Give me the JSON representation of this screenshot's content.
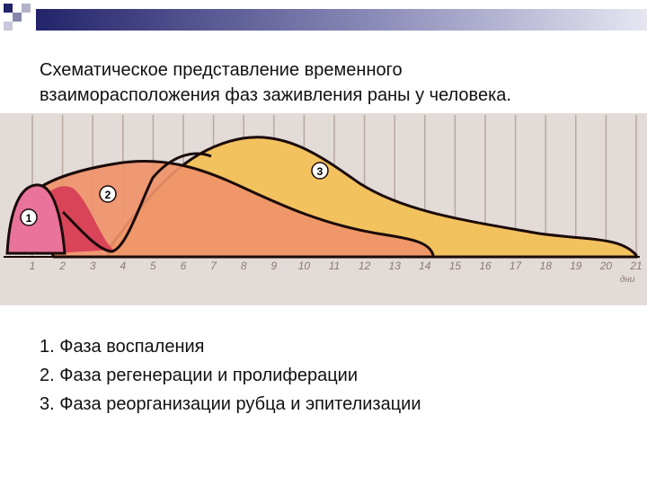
{
  "title_lines": [
    "Схематическое представление временного",
    "взаиморасположения фаз заживления раны у человека."
  ],
  "legend": [
    "1. Фаза воспаления",
    "2. Фаза регенерации и пролиферации",
    "3. Фаза реорганизации рубца и эпителизации"
  ],
  "diagram": {
    "days": [
      1,
      2,
      3,
      4,
      5,
      6,
      7,
      8,
      9,
      10,
      11,
      12,
      13,
      14,
      15,
      16,
      17,
      18,
      19,
      20,
      21
    ],
    "unit_label": "дни",
    "phase_markers": [
      "1",
      "2",
      "3"
    ],
    "colors": {
      "phase1": "#e9739a",
      "phase1_overlap": "#d63b55",
      "phase2": "#ef946a",
      "phase3": "#f2c25e",
      "grid": "#b8a8a0",
      "background": "#e3dbd8",
      "deco_navy": "#23236b"
    }
  }
}
